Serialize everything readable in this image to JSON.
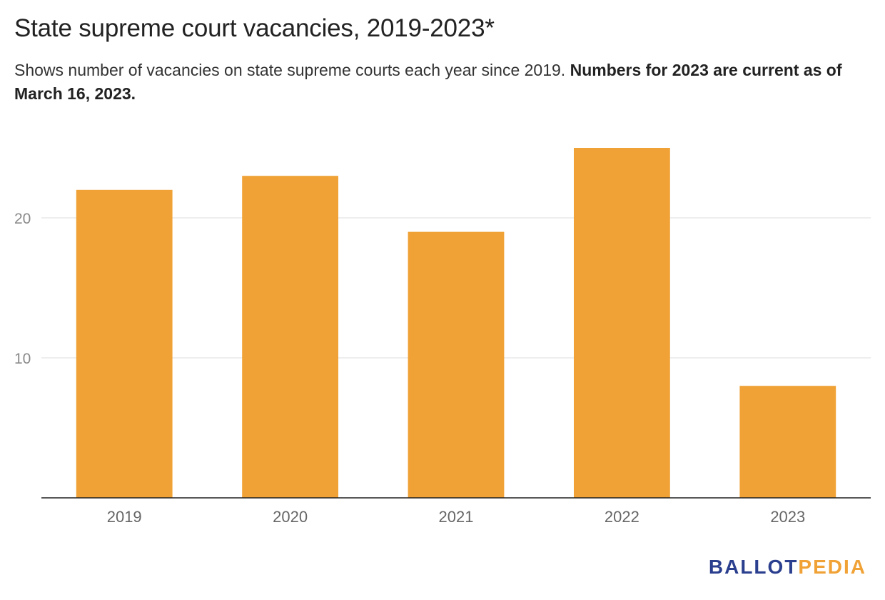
{
  "chart_data": {
    "type": "bar",
    "title": "State supreme court vacancies, 2019-2023*",
    "subtitle_plain": "Shows number of vacancies on state supreme courts each year since 2019. ",
    "subtitle_bold": "Numbers for 2023 are current as of March 16, 2023.",
    "categories": [
      "2019",
      "2020",
      "2021",
      "2022",
      "2023"
    ],
    "values": [
      22,
      23,
      19,
      25,
      8
    ],
    "xlabel": "",
    "ylabel": "",
    "ylim": [
      0,
      27
    ],
    "yticks": [
      10,
      20
    ],
    "grid": true,
    "bar_color": "#f0a236",
    "gridline_color": "#dddddd",
    "axis_color": "#222222",
    "tick_label_color": "#8a8a8a",
    "x_label_color": "#666666"
  },
  "branding": {
    "logo_part_a": "BALLOT",
    "logo_part_b": "PEDIA",
    "logo_color_a": "#2b3f8f",
    "logo_color_b": "#f0a236"
  }
}
